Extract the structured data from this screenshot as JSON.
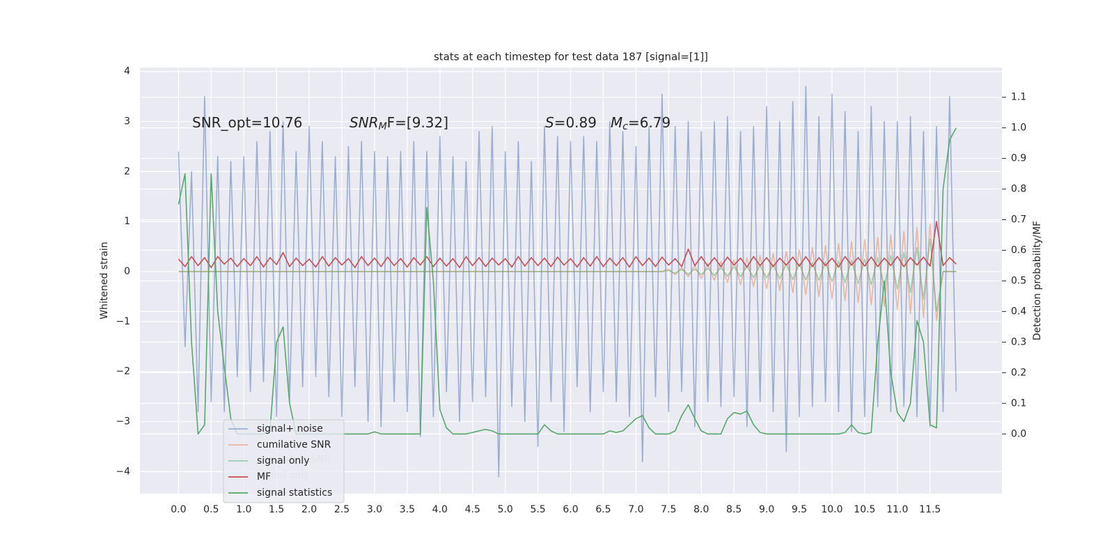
{
  "chart_data": {
    "type": "line",
    "title": "stats at each timestep for test data 187 [signal=[1]]",
    "ylabel": "Whitened strain",
    "y2label": "Detection probability/MF",
    "annotations": [
      {
        "text": "SNR_opt=10.76"
      },
      {
        "text": "SNR",
        "sub": "M",
        "rest": "F=[9.32]"
      },
      {
        "text": "S",
        "rest": "=0.89"
      },
      {
        "text": "M",
        "sub": "c",
        "rest": "=6.79"
      }
    ],
    "x": [
      0.0,
      0.1,
      0.2,
      0.3,
      0.4,
      0.5,
      0.6,
      0.7,
      0.8,
      0.9,
      1.0,
      1.1,
      1.2,
      1.3,
      1.4,
      1.5,
      1.6,
      1.7,
      1.8,
      1.9,
      2.0,
      2.1,
      2.2,
      2.3,
      2.4,
      2.5,
      2.6,
      2.7,
      2.8,
      2.9,
      3.0,
      3.1,
      3.2,
      3.3,
      3.4,
      3.5,
      3.6,
      3.7,
      3.8,
      3.9,
      4.0,
      4.1,
      4.2,
      4.3,
      4.4,
      4.5,
      4.6,
      4.7,
      4.8,
      4.9,
      5.0,
      5.1,
      5.2,
      5.3,
      5.4,
      5.5,
      5.6,
      5.7,
      5.8,
      5.9,
      6.0,
      6.1,
      6.2,
      6.3,
      6.4,
      6.5,
      6.6,
      6.7,
      6.8,
      6.9,
      7.0,
      7.1,
      7.2,
      7.3,
      7.4,
      7.5,
      7.6,
      7.7,
      7.8,
      7.9,
      8.0,
      8.1,
      8.2,
      8.3,
      8.4,
      8.5,
      8.6,
      8.7,
      8.8,
      8.9,
      9.0,
      9.1,
      9.2,
      9.3,
      9.4,
      9.5,
      9.6,
      9.7,
      9.8,
      9.9,
      10.0,
      10.1,
      10.2,
      10.3,
      10.4,
      10.5,
      10.6,
      10.7,
      10.8,
      10.9,
      11.0,
      11.1,
      11.2,
      11.3,
      11.4,
      11.5,
      11.6,
      11.7,
      11.8,
      11.9
    ],
    "series": [
      {
        "name": "signal+ noise",
        "color": "#4c72b0",
        "opacity": 0.5,
        "values": [
          2.4,
          -1.5,
          2.0,
          -2.8,
          3.5,
          -2.6,
          2.3,
          -2.8,
          2.2,
          -2.1,
          2.3,
          -2.4,
          2.6,
          -2.2,
          2.8,
          -2.9,
          3.0,
          -2.6,
          2.4,
          -2.3,
          2.9,
          -2.1,
          2.6,
          -2.5,
          2.3,
          -2.9,
          2.5,
          -2.3,
          2.6,
          -3.0,
          2.4,
          -3.1,
          2.3,
          -2.6,
          2.4,
          -2.8,
          2.6,
          -3.3,
          2.4,
          -2.9,
          2.7,
          -2.4,
          2.3,
          -3.0,
          2.2,
          -2.6,
          2.8,
          -2.5,
          2.9,
          -4.1,
          2.4,
          -2.7,
          2.6,
          -3.0,
          2.2,
          -3.5,
          2.9,
          -2.6,
          2.7,
          -3.2,
          2.6,
          -2.3,
          2.7,
          -2.8,
          2.6,
          -2.4,
          3.0,
          -2.6,
          2.8,
          -2.9,
          2.5,
          -3.8,
          2.9,
          -2.5,
          3.55,
          -2.8,
          2.9,
          -2.4,
          3.0,
          -3.1,
          2.8,
          -2.6,
          3.0,
          -2.7,
          3.1,
          -2.5,
          2.8,
          -3.1,
          2.9,
          -2.6,
          3.3,
          -2.8,
          3.0,
          -3.6,
          3.4,
          -2.9,
          3.7,
          -2.7,
          3.1,
          -2.6,
          3.55,
          -2.8,
          3.2,
          -3.2,
          2.8,
          -2.9,
          3.3,
          -2.7,
          3.0,
          -2.8,
          3.0,
          -2.7,
          3.1,
          -2.9,
          2.8,
          -3.1,
          2.9,
          -2.8,
          3.5,
          -2.4
        ]
      },
      {
        "name": "cumilative SNR",
        "color": "#dd8452",
        "opacity": 0.5,
        "values": [
          0,
          0,
          0,
          0,
          0,
          0,
          0,
          0,
          0,
          0,
          0,
          0,
          0,
          0,
          0,
          0,
          0,
          0,
          0,
          0,
          0,
          0,
          0,
          0,
          0,
          0,
          0,
          0,
          0,
          0,
          0,
          0,
          0,
          0,
          0,
          0,
          0,
          0,
          0,
          0,
          0,
          0,
          0,
          0,
          0,
          0,
          0,
          0,
          0,
          0,
          0,
          0,
          0,
          0,
          0,
          0,
          0,
          0,
          0,
          0,
          0,
          0,
          0,
          0,
          0,
          0,
          0,
          0,
          0,
          0,
          0,
          0,
          0,
          0,
          0,
          0.05,
          -0.06,
          0.08,
          -0.1,
          0.12,
          -0.14,
          0.16,
          -0.18,
          0.2,
          -0.22,
          0.24,
          -0.26,
          0.28,
          -0.3,
          0.32,
          -0.34,
          0.36,
          -0.38,
          0.4,
          -0.42,
          0.44,
          -0.46,
          0.48,
          -0.5,
          0.52,
          -0.54,
          0.56,
          -0.58,
          0.6,
          -0.62,
          0.64,
          -0.66,
          0.68,
          -0.7,
          0.73,
          -0.76,
          0.8,
          -0.84,
          0.88,
          -0.92,
          0.95,
          -0.98,
          0,
          0,
          0
        ]
      },
      {
        "name": "signal only",
        "color": "#55a868",
        "opacity": 0.5,
        "values": [
          0,
          0,
          0,
          0,
          0,
          0,
          0,
          0,
          0,
          0,
          0,
          0,
          0,
          0,
          0,
          0,
          0,
          0,
          0,
          0,
          0,
          0,
          0,
          0,
          0,
          0,
          0,
          0,
          0,
          0,
          0,
          0,
          0,
          0,
          0,
          0,
          0,
          0,
          0,
          0,
          0,
          0,
          0,
          0,
          0,
          0,
          0,
          0,
          0,
          0,
          0,
          0,
          0,
          0,
          0,
          0,
          0,
          0,
          0,
          0,
          0,
          0,
          0,
          0,
          0,
          0,
          0,
          0,
          0,
          0,
          0,
          0,
          0,
          0,
          0,
          0.02,
          -0.03,
          0.04,
          -0.05,
          0.05,
          -0.06,
          0.07,
          -0.08,
          0.08,
          -0.09,
          0.1,
          -0.1,
          0.11,
          -0.12,
          0.12,
          -0.13,
          0.14,
          -0.14,
          0.15,
          -0.16,
          0.16,
          -0.17,
          0.18,
          -0.18,
          0.19,
          -0.2,
          0.21,
          -0.22,
          0.23,
          -0.24,
          0.25,
          -0.26,
          0.28,
          -0.3,
          0.32,
          -0.35,
          0.38,
          -0.42,
          0.48,
          -0.55,
          0.65,
          -0.8,
          0,
          0,
          0
        ]
      },
      {
        "name": "MF",
        "color": "#c44e52",
        "opacity": 1,
        "values": [
          0.25,
          0.1,
          0.3,
          0.12,
          0.28,
          0.08,
          0.3,
          0.15,
          0.27,
          0.1,
          0.26,
          0.12,
          0.3,
          0.09,
          0.28,
          0.14,
          0.38,
          0.1,
          0.27,
          0.12,
          0.25,
          0.09,
          0.3,
          0.11,
          0.28,
          0.13,
          0.26,
          0.08,
          0.3,
          0.12,
          0.27,
          0.1,
          0.29,
          0.12,
          0.26,
          0.09,
          0.28,
          0.13,
          0.3,
          0.1,
          0.27,
          0.11,
          0.26,
          0.08,
          0.3,
          0.12,
          0.28,
          0.1,
          0.27,
          0.13,
          0.26,
          0.09,
          0.3,
          0.11,
          0.28,
          0.12,
          0.27,
          0.1,
          0.29,
          0.13,
          0.26,
          0.09,
          0.28,
          0.11,
          0.3,
          0.1,
          0.27,
          0.12,
          0.28,
          0.09,
          0.3,
          0.12,
          0.27,
          0.1,
          0.29,
          0.13,
          0.26,
          0.1,
          0.45,
          0.12,
          0.3,
          0.11,
          0.28,
          0.1,
          0.29,
          0.13,
          0.27,
          0.09,
          0.3,
          0.12,
          0.28,
          0.1,
          0.27,
          0.13,
          0.29,
          0.11,
          0.3,
          0.1,
          0.28,
          0.12,
          0.27,
          0.09,
          0.3,
          0.13,
          0.28,
          0.11,
          0.29,
          0.1,
          0.27,
          0.12,
          0.3,
          0.1,
          0.28,
          0.13,
          0.29,
          0.11,
          1.0,
          0.12,
          0.28,
          0.15
        ]
      },
      {
        "name": "signal statistics",
        "color": "#55a868",
        "opacity": 1,
        "axis": "y2",
        "values": [
          0.75,
          0.85,
          0.3,
          0.0,
          0.03,
          0.85,
          0.4,
          0.22,
          0.05,
          0.0,
          0.0,
          0.0,
          0.0,
          0.0,
          0.01,
          0.3,
          0.35,
          0.1,
          0.0,
          0.0,
          0.0,
          0.0,
          0.0,
          0.0,
          0.0,
          0.0,
          0.0,
          0.0,
          0.0,
          0.0,
          0.007,
          0.0,
          0.0,
          0.0,
          0.0,
          0.0,
          0.0,
          0.0,
          0.74,
          0.5,
          0.08,
          0.02,
          0.0,
          0.0,
          0.0,
          0.005,
          0.01,
          0.015,
          0.01,
          0.0,
          0.0,
          0.0,
          0.0,
          0.0,
          0.0,
          0.0,
          0.03,
          0.01,
          0.0,
          0.0,
          0.0,
          0.0,
          0.0,
          0.0,
          0.0,
          0.0,
          0.01,
          0.005,
          0.01,
          0.03,
          0.05,
          0.06,
          0.02,
          0.0,
          0.0,
          0.0,
          0.01,
          0.06,
          0.095,
          0.05,
          0.01,
          0.0,
          0.0,
          0.0,
          0.05,
          0.07,
          0.065,
          0.075,
          0.03,
          0.005,
          0.0,
          0.0,
          0.0,
          0.0,
          0.0,
          0.0,
          0.0,
          0.0,
          0.0,
          0.0,
          0.0,
          0.0,
          0.005,
          0.03,
          0.005,
          0.0,
          0.005,
          0.3,
          0.5,
          0.2,
          0.07,
          0.04,
          0.1,
          0.37,
          0.3,
          0.03,
          0.02,
          0.8,
          0.96,
          1.0
        ]
      }
    ],
    "xlim": [
      -0.59,
      12.6
    ],
    "ylim": [
      -4.44,
      4.08
    ],
    "y2lim": [
      -0.195,
      1.197
    ],
    "xticks": [
      {
        "value": 0,
        "label": "0.0"
      },
      0.5,
      {
        "value": 1,
        "label": "1.0"
      },
      1.5,
      {
        "value": 2,
        "label": "2.0"
      },
      2.5,
      {
        "value": 3,
        "label": "3.0"
      },
      3.5,
      {
        "value": 4,
        "label": "4.0"
      },
      4.5,
      {
        "value": 5,
        "label": "5.0"
      },
      5.5,
      {
        "value": 6,
        "label": "6.0"
      },
      6.5,
      {
        "value": 7,
        "label": "7.0"
      },
      7.5,
      {
        "value": 8,
        "label": "8.0"
      },
      8.5,
      {
        "value": 9,
        "label": "9.0"
      },
      9.5,
      {
        "value": 10,
        "label": "10.0"
      },
      10.5,
      {
        "value": 11,
        "label": "11.0"
      },
      11.5
    ],
    "yticks": [
      {
        "value": -4,
        "label": "−4"
      },
      {
        "value": -3,
        "label": "−3"
      },
      {
        "value": -2,
        "label": "−2"
      },
      {
        "value": -1,
        "label": "−1"
      },
      0,
      1,
      2,
      3,
      4
    ],
    "y2ticks": [
      {
        "value": 0,
        "label": "0.0"
      },
      0.1,
      0.2,
      0.3,
      0.4,
      0.5,
      0.6,
      0.7,
      0.8,
      0.9,
      {
        "value": 1,
        "label": "1.0"
      },
      1.1
    ],
    "grid": true,
    "legend": "lower left"
  }
}
